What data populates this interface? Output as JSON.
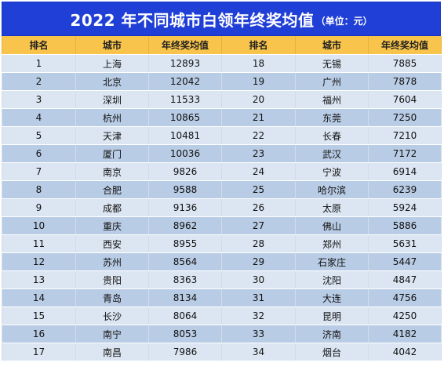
{
  "title": {
    "main": "2022 年不同城市白领年终奖均值",
    "unit": "（单位：元）"
  },
  "table": {
    "headers": [
      "排名",
      "城市",
      "年终奖均值",
      "排名",
      "城市",
      "年终奖均值"
    ],
    "rows": [
      [
        "1",
        "上海",
        "12893",
        "18",
        "无锡",
        "7885"
      ],
      [
        "2",
        "北京",
        "12042",
        "19",
        "广州",
        "7878"
      ],
      [
        "3",
        "深圳",
        "11533",
        "20",
        "福州",
        "7604"
      ],
      [
        "4",
        "杭州",
        "10865",
        "21",
        "东莞",
        "7250"
      ],
      [
        "5",
        "天津",
        "10481",
        "22",
        "长春",
        "7210"
      ],
      [
        "6",
        "厦门",
        "10036",
        "23",
        "武汉",
        "7172"
      ],
      [
        "7",
        "南京",
        "9826",
        "24",
        "宁波",
        "6914"
      ],
      [
        "8",
        "合肥",
        "9588",
        "25",
        "哈尔滨",
        "6239"
      ],
      [
        "9",
        "成都",
        "9136",
        "26",
        "太原",
        "5924"
      ],
      [
        "10",
        "重庆",
        "8962",
        "27",
        "佛山",
        "5886"
      ],
      [
        "11",
        "西安",
        "8955",
        "28",
        "郑州",
        "5631"
      ],
      [
        "12",
        "苏州",
        "8564",
        "29",
        "石家庄",
        "5447"
      ],
      [
        "13",
        "贵阳",
        "8363",
        "30",
        "沈阳",
        "4847"
      ],
      [
        "14",
        "青岛",
        "8134",
        "31",
        "大连",
        "4756"
      ],
      [
        "15",
        "长沙",
        "8064",
        "32",
        "昆明",
        "4250"
      ],
      [
        "16",
        "南宁",
        "8053",
        "33",
        "济南",
        "4182"
      ],
      [
        "17",
        "南昌",
        "7986",
        "34",
        "烟台",
        "4042"
      ]
    ]
  },
  "colors": {
    "title_bg": "#1f3fd6",
    "header_bg": "#f8c44b",
    "row_light": "#dce6f3",
    "row_dark": "#b9cce5"
  }
}
